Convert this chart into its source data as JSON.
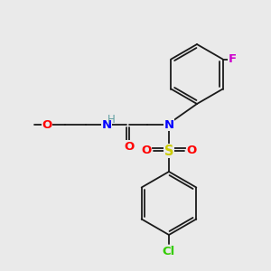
{
  "background_color": "#eaeaea",
  "bond_color": "#1a1a1a",
  "atom_colors": {
    "N": "#0000ff",
    "O": "#ff0000",
    "S": "#cccc00",
    "F": "#cc00cc",
    "Cl": "#33cc00",
    "H_on_N": "#5f9ea0",
    "C": "#1a1a1a"
  },
  "font_size": 9.5,
  "fig_size": [
    3.0,
    3.0
  ],
  "dpi": 100,
  "lw": 1.3
}
